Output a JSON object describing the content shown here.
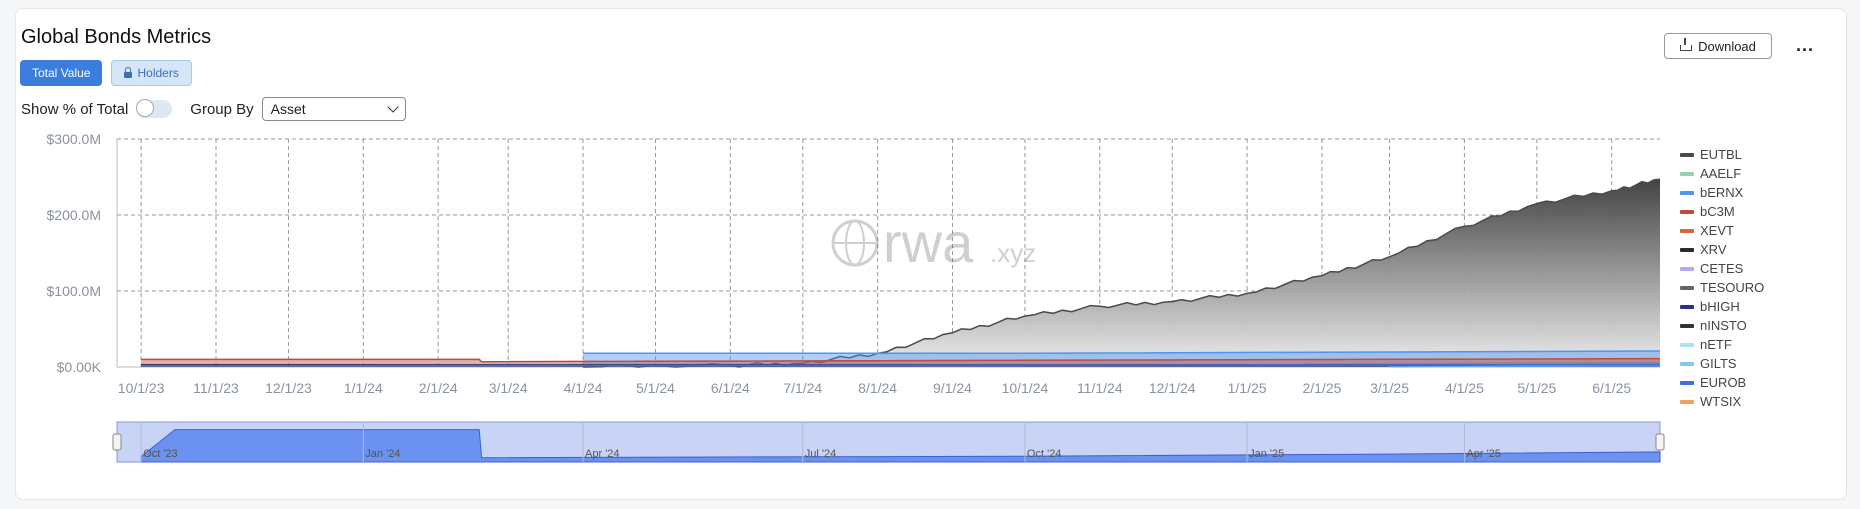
{
  "header": {
    "title": "Global Bonds Metrics",
    "download_label": "Download",
    "more_label": "..."
  },
  "tabs": [
    {
      "label": "Total Value",
      "active": true
    },
    {
      "label": "Holders",
      "active": false
    }
  ],
  "controls": {
    "show_pct_label": "Show % of Total",
    "show_pct_on": false,
    "group_by_label": "Group By",
    "group_by_value": "Asset"
  },
  "watermark": {
    "main": "rwa",
    "suffix": ".xyz"
  },
  "colors": {
    "accent": "#3b7ddd",
    "navigator_fill": "#5b86ee",
    "navigator_bg": "#c9d3f5"
  },
  "chart_data": {
    "type": "area",
    "title": "",
    "xlabel": "",
    "ylabel": "",
    "ylim": [
      0,
      300
    ],
    "y_unit": "$M",
    "y_ticks": [
      "$0.00K",
      "$100.0M",
      "$200.0M",
      "$300.0M"
    ],
    "y_tick_values": [
      0,
      100,
      200,
      300
    ],
    "x_ticks": [
      "10/1/23",
      "11/1/23",
      "12/1/23",
      "1/1/24",
      "2/1/24",
      "3/1/24",
      "4/1/24",
      "5/1/24",
      "6/1/24",
      "7/1/24",
      "8/1/24",
      "9/1/24",
      "10/1/24",
      "11/1/24",
      "12/1/24",
      "1/1/25",
      "2/1/25",
      "3/1/25",
      "4/1/25",
      "5/1/25",
      "6/1/25"
    ],
    "x_tick_dates": [
      "2023-10-01",
      "2023-11-01",
      "2023-12-01",
      "2024-01-01",
      "2024-02-01",
      "2024-03-01",
      "2024-04-01",
      "2024-05-01",
      "2024-06-01",
      "2024-07-01",
      "2024-08-01",
      "2024-09-01",
      "2024-10-01",
      "2024-11-01",
      "2024-12-01",
      "2025-01-01",
      "2025-02-01",
      "2025-03-01",
      "2025-04-01",
      "2025-05-01",
      "2025-06-01"
    ],
    "x_range": [
      "2023-09-21",
      "2025-06-21"
    ],
    "grid": true,
    "legend_position": "right",
    "legend": [
      {
        "name": "EUTBL",
        "color": "#4a4a4a"
      },
      {
        "name": "AAELF",
        "color": "#8fd3b0"
      },
      {
        "name": "bERNX",
        "color": "#4f95f0"
      },
      {
        "name": "bC3M",
        "color": "#c04b3e"
      },
      {
        "name": "XEVT",
        "color": "#d2683a"
      },
      {
        "name": "XRV",
        "color": "#2a2a2a"
      },
      {
        "name": "CETES",
        "color": "#b8a6ee"
      },
      {
        "name": "TESOURO",
        "color": "#5e6b62"
      },
      {
        "name": "bHIGH",
        "color": "#2e2f8a"
      },
      {
        "name": "nINSTO",
        "color": "#333333"
      },
      {
        "name": "nETF",
        "color": "#a6e4f4"
      },
      {
        "name": "GILTS",
        "color": "#8ac7ee"
      },
      {
        "name": "EUROB",
        "color": "#3e6fe0"
      },
      {
        "name": "WTSIX",
        "color": "#f0a060"
      }
    ],
    "series": [
      {
        "name": "EUTBL",
        "x": [
          "2024-04-01",
          "2024-06-01",
          "2024-07-01",
          "2024-08-01",
          "2024-09-01",
          "2024-10-01",
          "2024-11-01",
          "2024-12-01",
          "2025-01-01",
          "2025-02-01",
          "2025-03-01",
          "2025-04-01",
          "2025-05-01",
          "2025-06-01",
          "2025-06-21"
        ],
        "values": [
          0,
          2,
          5,
          18,
          45,
          67,
          80,
          86,
          97,
          120,
          145,
          185,
          215,
          232,
          247
        ]
      },
      {
        "name": "AAELF",
        "x": [
          "2025-01-25",
          "2025-06-21"
        ],
        "values": [
          4,
          6
        ]
      },
      {
        "name": "bERNX",
        "x": [
          "2024-04-01",
          "2024-10-01",
          "2025-06-21"
        ],
        "values": [
          18,
          18,
          21
        ]
      },
      {
        "name": "bC3M",
        "x": [
          "2023-10-01",
          "2024-02-18",
          "2024-02-19",
          "2025-06-21"
        ],
        "values": [
          10,
          10,
          7,
          11
        ]
      },
      {
        "name": "XEVT",
        "x": [
          "2024-10-01",
          "2025-06-21"
        ],
        "values": [
          1,
          4
        ]
      },
      {
        "name": "XRV",
        "x": [
          "2023-10-01",
          "2025-06-21"
        ],
        "values": [
          3,
          3
        ]
      },
      {
        "name": "GILTS",
        "x": [
          "2025-03-01",
          "2025-06-21"
        ],
        "values": [
          0,
          2
        ]
      },
      {
        "name": "EUROB",
        "x": [
          "2023-10-01",
          "2025-06-21"
        ],
        "values": [
          2,
          3
        ]
      }
    ],
    "navigator_labels": [
      "Oct '23",
      "Jan '24",
      "Apr '24",
      "Jul '24",
      "Oct '24",
      "Jan '25",
      "Apr '25"
    ]
  }
}
